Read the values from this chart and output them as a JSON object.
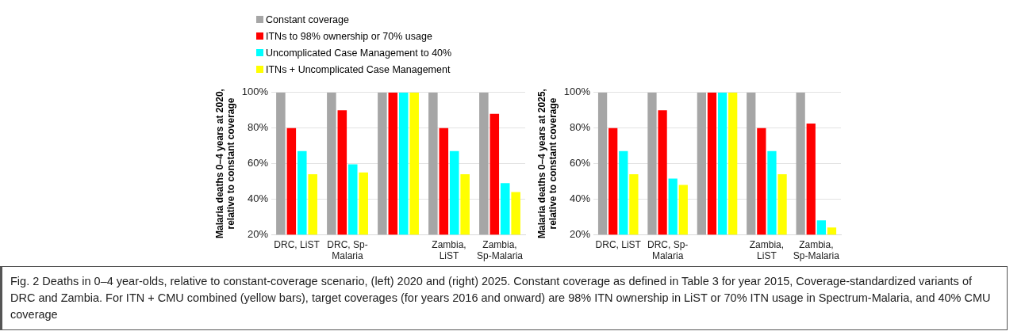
{
  "chart_data": [
    {
      "type": "bar",
      "ylabel": "Malaria deaths 0–4 years at 2020, relative to constant coverage",
      "categories": [
        "DRC, LiST",
        "DRC, Sp-Malaria",
        null,
        "Zambia, LiST",
        "Zambia, Sp-Malaria"
      ],
      "series": [
        {
          "name": "Constant coverage",
          "color": "#a6a6a6",
          "values": [
            100,
            100,
            100,
            100,
            100
          ]
        },
        {
          "name": "ITNs to 98% ownership or 70% usage",
          "color": "#ff0000",
          "values": [
            80,
            90,
            100,
            80,
            88
          ]
        },
        {
          "name": "Uncomplicated Case Management to 40%",
          "color": "#00ffff",
          "values": [
            67,
            59.5,
            100,
            67,
            49
          ]
        },
        {
          "name": "ITNs + Uncomplicated Case Management",
          "color": "#ffff00",
          "values": [
            54,
            55,
            100,
            54,
            44
          ]
        }
      ],
      "ylim": [
        20,
        100
      ],
      "yticks": [
        {
          "value": 20,
          "label": "20%"
        },
        {
          "value": 40,
          "label": "40%"
        },
        {
          "value": 60,
          "label": "60%"
        },
        {
          "value": 80,
          "label": "80%"
        },
        {
          "value": 100,
          "label": "100%"
        }
      ],
      "grid": "y",
      "legend": "top",
      "annotations": [
        "Fig. 2 Deaths in 0–4 year-olds, relative to constant-coverage scenario, (left) 2020 and (right) 2025. Constant coverage as defined in Table 3 for year 2015, Coverage-standardized variants of DRC and Zambia. For ITN + CMU combined (yellow bars), target coverages (for years 2016 and onward) are 98% ITN ownership in LiST or 70% ITN usage in Spectrum-Malaria, and 40% CMU coverage"
      ]
    },
    {
      "type": "bar",
      "ylabel": "Malaria deaths 0–4 years at 2025, relative to constant coverage",
      "categories": [
        "DRC, LiST",
        "DRC, Sp-Malaria",
        null,
        "Zambia, LiST",
        "Zambia, Sp-Malaria"
      ],
      "series": [
        {
          "color": "#a6a6a6",
          "values": [
            100,
            100,
            100,
            100,
            100
          ]
        },
        {
          "color": "#ff0000",
          "values": [
            80,
            90,
            100,
            80,
            82.5
          ]
        },
        {
          "color": "#00ffff",
          "values": [
            67,
            51.5,
            100,
            67,
            28
          ]
        },
        {
          "color": "#ffff00",
          "values": [
            54,
            48,
            100,
            54,
            24
          ]
        }
      ],
      "ylim": [
        20,
        100
      ],
      "yticks": [
        {
          "value": 20,
          "label": "20%"
        },
        {
          "value": 40,
          "label": "40%"
        },
        {
          "value": 60,
          "label": "60%"
        },
        {
          "value": 80,
          "label": "80%"
        },
        {
          "value": 100,
          "label": "100%"
        }
      ],
      "grid": "y"
    }
  ]
}
